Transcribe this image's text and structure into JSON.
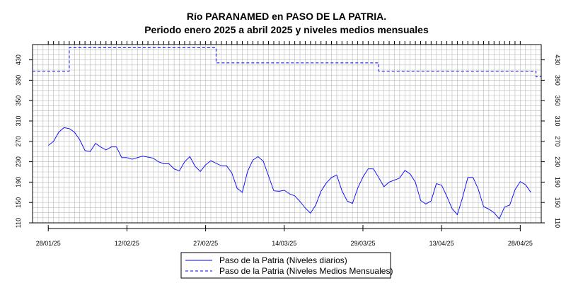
{
  "chart_data": {
    "type": "line",
    "title": "Río PARANAMED en PASO DE LA PATRIA.",
    "subtitle": "Periodo enero 2025 a abril 2025 y niveles medios mensuales",
    "xlabel": "",
    "ylabel": "",
    "x_range": [
      "2025-01-25",
      "2025-05-02"
    ],
    "ylim": [
      110,
      460
    ],
    "y_ticks": [
      110,
      150,
      190,
      230,
      270,
      310,
      350,
      390,
      430
    ],
    "x_tick_labels": [
      {
        "date": "2025-01-28",
        "label": "28/01/25"
      },
      {
        "date": "2025-02-12",
        "label": "12/02/25"
      },
      {
        "date": "2025-02-27",
        "label": "27/02/25"
      },
      {
        "date": "2025-03-14",
        "label": "14/03/25"
      },
      {
        "date": "2025-03-29",
        "label": "29/03/25"
      },
      {
        "date": "2025-04-13",
        "label": "13/04/25"
      },
      {
        "date": "2025-04-28",
        "label": "28/04/25"
      }
    ],
    "grid": true,
    "legend_position": "bottom-center",
    "series": [
      {
        "name": "Paso de la Patria (Niveles diarios)",
        "style": "solid",
        "color": "#0000ff",
        "points": [
          [
            "2025-01-28",
            262
          ],
          [
            "2025-01-29",
            270
          ],
          [
            "2025-01-30",
            288
          ],
          [
            "2025-01-31",
            297
          ],
          [
            "2025-02-01",
            295
          ],
          [
            "2025-02-02",
            288
          ],
          [
            "2025-02-03",
            273
          ],
          [
            "2025-02-04",
            252
          ],
          [
            "2025-02-05",
            250
          ],
          [
            "2025-02-06",
            266
          ],
          [
            "2025-02-07",
            259
          ],
          [
            "2025-02-08",
            253
          ],
          [
            "2025-02-09",
            259
          ],
          [
            "2025-02-10",
            259
          ],
          [
            "2025-02-11",
            238
          ],
          [
            "2025-02-12",
            238
          ],
          [
            "2025-02-13",
            235
          ],
          [
            "2025-02-14",
            238
          ],
          [
            "2025-02-15",
            241
          ],
          [
            "2025-02-16",
            239
          ],
          [
            "2025-02-17",
            237
          ],
          [
            "2025-02-18",
            230
          ],
          [
            "2025-02-19",
            226
          ],
          [
            "2025-02-20",
            226
          ],
          [
            "2025-02-21",
            216
          ],
          [
            "2025-02-22",
            212
          ],
          [
            "2025-02-23",
            230
          ],
          [
            "2025-02-24",
            240
          ],
          [
            "2025-02-25",
            221
          ],
          [
            "2025-02-26",
            211
          ],
          [
            "2025-02-27",
            224
          ],
          [
            "2025-02-28",
            232
          ],
          [
            "2025-03-01",
            227
          ],
          [
            "2025-03-02",
            222
          ],
          [
            "2025-03-03",
            222
          ],
          [
            "2025-03-04",
            208
          ],
          [
            "2025-03-05",
            178
          ],
          [
            "2025-03-06",
            170
          ],
          [
            "2025-03-07",
            211
          ],
          [
            "2025-03-08",
            233
          ],
          [
            "2025-03-09",
            240
          ],
          [
            "2025-03-10",
            231
          ],
          [
            "2025-03-11",
            202
          ],
          [
            "2025-03-12",
            173
          ],
          [
            "2025-03-13",
            172
          ],
          [
            "2025-03-14",
            174
          ],
          [
            "2025-03-15",
            167
          ],
          [
            "2025-03-16",
            163
          ],
          [
            "2025-03-17",
            152
          ],
          [
            "2025-03-18",
            139
          ],
          [
            "2025-03-19",
            129
          ],
          [
            "2025-03-20",
            145
          ],
          [
            "2025-03-21",
            172
          ],
          [
            "2025-03-22",
            188
          ],
          [
            "2025-03-23",
            199
          ],
          [
            "2025-03-24",
            204
          ],
          [
            "2025-03-25",
            173
          ],
          [
            "2025-03-26",
            153
          ],
          [
            "2025-03-27",
            148
          ],
          [
            "2025-03-28",
            178
          ],
          [
            "2025-03-29",
            200
          ],
          [
            "2025-03-30",
            216
          ],
          [
            "2025-03-31",
            216
          ],
          [
            "2025-04-01",
            199
          ],
          [
            "2025-04-02",
            181
          ],
          [
            "2025-04-03",
            190
          ],
          [
            "2025-04-04",
            194
          ],
          [
            "2025-04-05",
            198
          ],
          [
            "2025-04-06",
            213
          ],
          [
            "2025-04-07",
            206
          ],
          [
            "2025-04-08",
            190
          ],
          [
            "2025-04-09",
            154
          ],
          [
            "2025-04-10",
            147
          ],
          [
            "2025-04-11",
            153
          ],
          [
            "2025-04-12",
            187
          ],
          [
            "2025-04-13",
            184
          ],
          [
            "2025-04-14",
            162
          ],
          [
            "2025-04-15",
            138
          ],
          [
            "2025-04-16",
            126
          ],
          [
            "2025-04-17",
            160
          ],
          [
            "2025-04-18",
            199
          ],
          [
            "2025-04-19",
            199
          ],
          [
            "2025-04-20",
            176
          ],
          [
            "2025-04-21",
            142
          ],
          [
            "2025-04-22",
            137
          ],
          [
            "2025-04-23",
            130
          ],
          [
            "2025-04-24",
            118
          ],
          [
            "2025-04-25",
            141
          ],
          [
            "2025-04-26",
            145
          ],
          [
            "2025-04-27",
            175
          ],
          [
            "2025-04-28",
            191
          ],
          [
            "2025-04-29",
            185
          ],
          [
            "2025-04-30",
            170
          ]
        ]
      },
      {
        "name": "Paso de la Patria (Niveles Medios Mensuales)",
        "style": "dashed",
        "color": "#0000ff",
        "steps": [
          {
            "from": "2025-01-25",
            "to": "2025-02-01",
            "value": 408
          },
          {
            "from": "2025-02-01",
            "to": "2025-03-01",
            "value": 454
          },
          {
            "from": "2025-03-01",
            "to": "2025-04-01",
            "value": 424
          },
          {
            "from": "2025-04-01",
            "to": "2025-05-01",
            "value": 408
          },
          {
            "from": "2025-05-01",
            "to": "2025-05-02",
            "value": 397
          }
        ]
      }
    ]
  }
}
